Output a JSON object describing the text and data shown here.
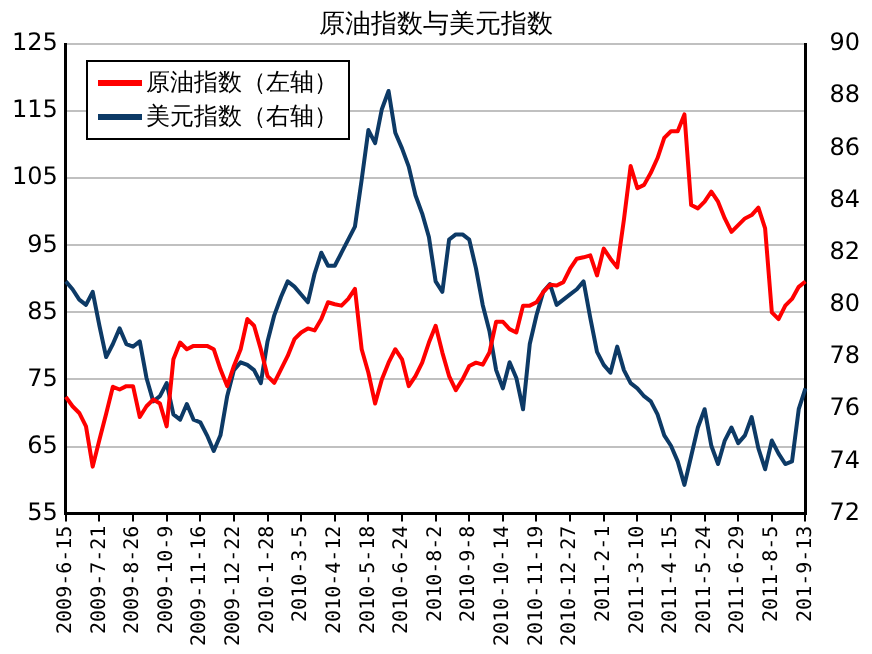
{
  "chart_data": {
    "type": "line",
    "title": "原油指数与美元指数",
    "categories": [
      "2009-6-15",
      null,
      null,
      null,
      null,
      "2009-7-21",
      null,
      null,
      null,
      null,
      "2009-8-26",
      null,
      null,
      null,
      null,
      "2009-10-9",
      null,
      null,
      null,
      null,
      "2009-11-16",
      null,
      null,
      null,
      null,
      "2009-12-22",
      null,
      null,
      null,
      null,
      "2010-1-28",
      null,
      null,
      null,
      null,
      "2010-3-5",
      null,
      null,
      null,
      null,
      "2010-4-12",
      null,
      null,
      null,
      null,
      "2010-5-18",
      null,
      null,
      null,
      null,
      "2010-6-24",
      null,
      null,
      null,
      null,
      "2010-8-2",
      null,
      null,
      null,
      null,
      "2010-9-8",
      null,
      null,
      null,
      null,
      "2010-10-14",
      null,
      null,
      null,
      null,
      "2010-11-19",
      null,
      null,
      null,
      null,
      "2010-12-27",
      null,
      null,
      null,
      null,
      "2011-2-1",
      null,
      null,
      null,
      null,
      "2011-3-10",
      null,
      null,
      null,
      null,
      "2011-4-15",
      null,
      null,
      null,
      null,
      "2011-5-24",
      null,
      null,
      null,
      null,
      "2011-6-29",
      null,
      null,
      null,
      null,
      "2011-8-5",
      null,
      null,
      null,
      null,
      "201-9-13"
    ],
    "series": [
      {
        "name": "原油指数（左轴）",
        "color": "#ff0000",
        "values": [
          72.4,
          71,
          70,
          68,
          62,
          66,
          69.9,
          73.9,
          73.5,
          74,
          74,
          69.4,
          71,
          72,
          71.4,
          68,
          78,
          80.5,
          79.5,
          80,
          80,
          80,
          79.5,
          76.5,
          74,
          77,
          79.5,
          84,
          83,
          79.5,
          75.5,
          74.5,
          76.5,
          78.5,
          81,
          82,
          82.6,
          82.3,
          84,
          86.5,
          86.2,
          86,
          87,
          88.5,
          79.5,
          76,
          71.4,
          75,
          77.5,
          79.5,
          78,
          74,
          75.5,
          77.5,
          80.5,
          83,
          79,
          75.5,
          73.4,
          75,
          77,
          77.5,
          77.2,
          79,
          83.6,
          83.6,
          82.5,
          82,
          86,
          86,
          86.5,
          88,
          89.1,
          89,
          89.5,
          91.5,
          93,
          93.2,
          93.5,
          90.5,
          94.5,
          93,
          91.7,
          98.8,
          106.8,
          103.5,
          104,
          105.8,
          108,
          111,
          112,
          112,
          114.5,
          101,
          100.5,
          101.5,
          103,
          101.5,
          99,
          97,
          98,
          99,
          99.5,
          100.6,
          97.5,
          85,
          84,
          86,
          87,
          88.8,
          89.6
        ]
      },
      {
        "name": "美元指数（右轴）",
        "color": "#0d3a66",
        "axis": "y2",
        "values": [
          80.9,
          80.6,
          80.2,
          80,
          80.5,
          79.2,
          78,
          78.5,
          79.1,
          78.5,
          78.4,
          78.6,
          77.2,
          76.3,
          76.5,
          77,
          75.8,
          75.6,
          76.2,
          75.6,
          75.5,
          75,
          74.4,
          75,
          76.5,
          77.5,
          77.8,
          77.7,
          77.5,
          77,
          78.6,
          79.6,
          80.3,
          80.9,
          80.7,
          80.4,
          80.1,
          81.2,
          82,
          81.5,
          81.5,
          82,
          82.5,
          83,
          84.8,
          86.7,
          86.2,
          87.5,
          88.2,
          86.6,
          86,
          85.3,
          84.2,
          83.5,
          82.6,
          80.9,
          80.5,
          82.5,
          82.7,
          82.7,
          82.5,
          81.4,
          80,
          79,
          77.5,
          76.8,
          77.8,
          77.2,
          76,
          78.5,
          79.6,
          80.5,
          80.8,
          80,
          80.2,
          80.4,
          80.6,
          80.9,
          79.5,
          78.2,
          77.7,
          77.4,
          78.4,
          77.5,
          77,
          76.8,
          76.5,
          76.3,
          75.8,
          75,
          74.6,
          74,
          73.1,
          74.2,
          75.3,
          76,
          74.6,
          73.9,
          74.8,
          75.3,
          74.7,
          75,
          75.7,
          74.5,
          73.7,
          74.8,
          74.3,
          73.9,
          74,
          76,
          76.8
        ]
      }
    ],
    "ylim": [
      55,
      125
    ],
    "yticks": [
      55,
      65,
      75,
      85,
      95,
      105,
      115,
      125
    ],
    "y2lim": [
      72,
      90
    ],
    "y2ticks": [
      72,
      74,
      76,
      78,
      80,
      82,
      84,
      86,
      88,
      90
    ],
    "grid": "y",
    "legend": "top left",
    "marker": "none",
    "line_style": "solid"
  }
}
